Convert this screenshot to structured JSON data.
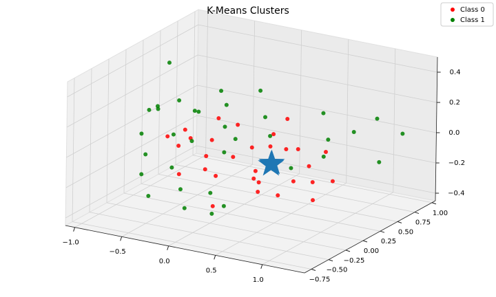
{
  "chart_data": {
    "type": "scatter3d",
    "title": "K-Means Clusters",
    "xlim": [
      -1.1,
      1.45
    ],
    "ylim": [
      -0.85,
      1.05
    ],
    "zlim": [
      -0.45,
      0.5
    ],
    "xticks": [
      {
        "value": -1,
        "label": "−1.0"
      },
      {
        "value": -0.5,
        "label": "−0.5"
      },
      {
        "value": 0,
        "label": "0.0"
      },
      0.5,
      {
        "value": 1,
        "label": "1.0"
      }
    ],
    "yticks": [
      {
        "value": -0.75,
        "label": "−0.75"
      },
      {
        "value": -0.5,
        "label": "−0.50"
      },
      {
        "value": -0.25,
        "label": "−0.25"
      },
      {
        "value": 0,
        "label": "0.00"
      },
      0.25,
      {
        "value": 0.5,
        "label": "0.50"
      },
      0.75,
      {
        "value": 1,
        "label": "1.00"
      }
    ],
    "zticks": [
      {
        "value": -0.4,
        "label": "−0.4"
      },
      {
        "value": -0.2,
        "label": "−0.2"
      },
      {
        "value": 0,
        "label": "0.0"
      },
      0.2,
      0.4
    ],
    "grid": true,
    "legend": "upper right",
    "series": [
      {
        "name": "Class 0",
        "color": "#ff0000",
        "x": [
          -0.6,
          -0.5,
          -0.45,
          -0.4,
          -0.3,
          -0.25,
          -0.2,
          -0.1,
          0,
          0.05,
          0.1,
          0.15,
          0.2,
          0.25,
          0.3,
          0.35,
          0.4,
          0.45,
          0.5,
          0.55,
          0.6,
          0.65,
          0.7,
          0.75,
          0.8,
          0.9,
          -0.35,
          0.1,
          0.3,
          0.5
        ],
        "y": [
          0.1,
          -0.2,
          0.3,
          0,
          -0.3,
          0.2,
          0.1,
          -0.1,
          0.35,
          -0.4,
          0,
          0.2,
          -0.2,
          0.1,
          0.45,
          -0.1,
          0.3,
          0,
          0.5,
          -0.3,
          0.2,
          0.35,
          0,
          0.4,
          0.15,
          0.3,
          -0.15,
          -0.35,
          0.25,
          0.05
        ],
        "z": [
          -0.1,
          0.05,
          -0.2,
          0,
          -0.15,
          0.1,
          -0.25,
          0.05,
          -0.1,
          -0.05,
          0.15,
          -0.2,
          0,
          -0.3,
          0.1,
          -0.15,
          -0.05,
          0.05,
          -0.2,
          -0.1,
          0,
          -0.25,
          -0.15,
          -0.05,
          -0.3,
          -0.2,
          0.1,
          -0.3,
          0.05,
          -0.28
        ]
      },
      {
        "name": "Class 1",
        "color": "#008000",
        "x": [
          -1,
          -0.9,
          -0.85,
          -0.8,
          -0.75,
          -0.7,
          -0.65,
          -0.6,
          -0.55,
          -0.5,
          -0.45,
          -0.4,
          -0.35,
          -0.3,
          -0.2,
          -0.15,
          -0.1,
          0,
          0.1,
          0.2,
          0.3,
          0.4,
          0.5,
          0.6,
          0.7,
          0.8,
          0.9,
          1,
          1.1,
          1.2,
          -0.95,
          -0.7,
          -0.5,
          -0.25,
          0.05
        ],
        "y": [
          0.5,
          0.2,
          -0.1,
          0.3,
          0,
          -0.3,
          0.4,
          0.1,
          -0.4,
          0.25,
          -0.2,
          0.5,
          -0.05,
          0.3,
          -0.35,
          0.15,
          0.6,
          -0.25,
          0.4,
          -0.5,
          0.2,
          -0.6,
          0.7,
          0.1,
          0.5,
          0.3,
          0.6,
          0.8,
          0.7,
          0.9,
          0.1,
          -0.2,
          0,
          0.45,
          -0.1
        ],
        "z": [
          0.3,
          0.1,
          0,
          -0.1,
          0.15,
          -0.2,
          0.05,
          0.2,
          -0.3,
          0.1,
          -0.15,
          -0.05,
          0,
          0.25,
          -0.35,
          -0.1,
          0.2,
          -0.25,
          0.1,
          -0.3,
          0.05,
          -0.2,
          0.1,
          -0.1,
          0,
          -0.05,
          0.05,
          0.1,
          -0.15,
          0,
          -0.2,
          0.2,
          -0.35,
          -0.1,
          0.3
        ]
      }
    ],
    "centroids": {
      "color": "#1f77b4",
      "x": [
        0.35,
        0.38
      ],
      "y": [
        0.15,
        0.12
      ],
      "z": [
        -0.12,
        -0.1
      ]
    }
  }
}
